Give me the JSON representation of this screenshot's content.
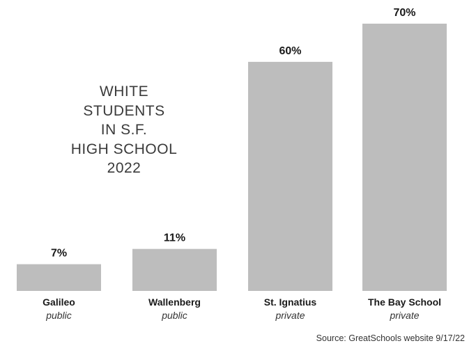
{
  "chart_data": {
    "type": "bar",
    "title_lines": [
      "WHITE",
      "STUDENTS",
      "IN S.F.",
      "HIGH SCHOOL",
      "2022"
    ],
    "categories": [
      "Galileo",
      "Wallenberg",
      "St. Ignatius",
      "The Bay School"
    ],
    "subcategories": [
      "public",
      "public",
      "private",
      "private"
    ],
    "values": [
      7,
      11,
      60,
      70
    ],
    "value_labels": [
      "7%",
      "11%",
      "60%",
      "70%"
    ],
    "unit": "%",
    "ylim": [
      0,
      70
    ],
    "grid": false,
    "bar_color": "#bdbdbd",
    "source": "Source: GreatSchools website 9/17/22"
  }
}
